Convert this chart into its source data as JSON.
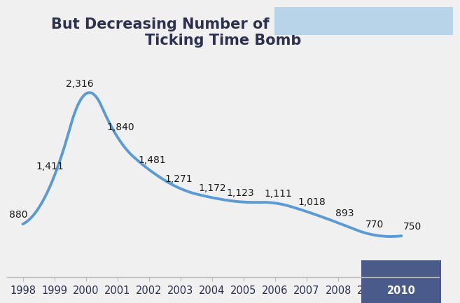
{
  "title": "But Decreasing Number of Active VCs is a\nTicking Time Bomb",
  "years": [
    1998,
    1999,
    2000,
    2001,
    2002,
    2003,
    2004,
    2005,
    2006,
    2007,
    2008,
    2009,
    2010
  ],
  "values": [
    880,
    1411,
    2316,
    1840,
    1481,
    1271,
    1172,
    1123,
    1111,
    1018,
    893,
    770,
    750
  ],
  "line_color": "#5b9bd5",
  "line_width": 2.8,
  "background_color": "#f0f0f0",
  "plot_bg_color": "#f0f0f0",
  "title_color": "#2e3050",
  "label_color": "#1a1a1a",
  "title_fontsize": 15,
  "label_fontsize": 10,
  "xtick_fontsize": 10.5,
  "ylim": [
    300,
    2750
  ],
  "xlim": [
    1997.5,
    2011.2
  ],
  "highlight_box_color": "#4a5a8a",
  "highlight_text_color": "#ffffff",
  "spline_k": 2
}
